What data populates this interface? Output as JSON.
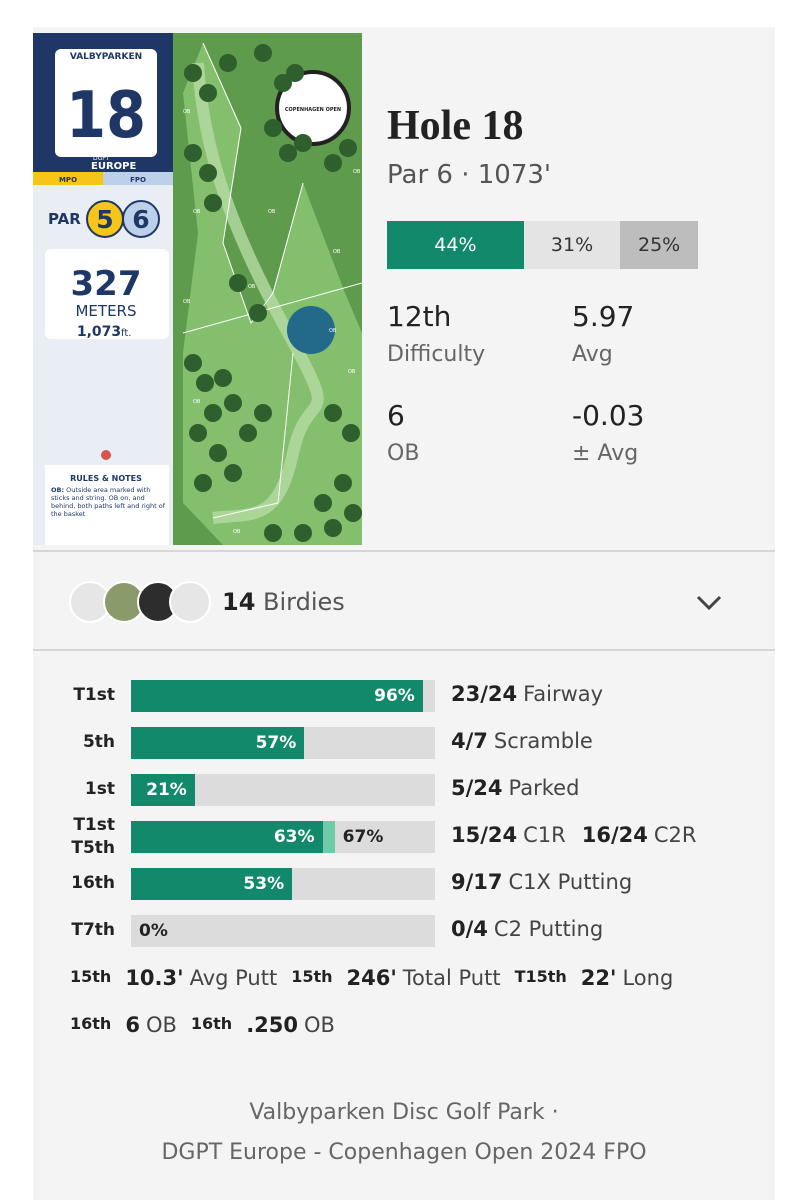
{
  "hole_card": {
    "park": "VALBYPARKEN",
    "number": "18",
    "tour": "DGPT",
    "region": "EUROPE",
    "divisions": [
      "MPO",
      "FPO"
    ],
    "par_label": "PAR",
    "pars": [
      "5",
      "6"
    ],
    "meters": "327",
    "meters_label": "METERS",
    "feet": "1,073",
    "feet_unit": "ft.",
    "rules_title": "RULES & NOTES",
    "rules_term": "OB:",
    "rules_text": "Outside area marked with sticks and string. OB on, and behind, both paths left and right of the basket"
  },
  "map": {
    "logo_text": "COPENHAGEN OPEN",
    "ob_label": "OB"
  },
  "summary": {
    "title": "Hole 18",
    "subtitle": "Par 6 · 1073'",
    "distribution": {
      "values": [
        44,
        31,
        25
      ],
      "value_labels": [
        "44%",
        "31%",
        "25%"
      ]
    },
    "stats": [
      {
        "value": "12th",
        "label": "Difficulty"
      },
      {
        "value": "5.97",
        "label": "Avg"
      },
      {
        "value": "6",
        "label": "OB"
      },
      {
        "value": "-0.03",
        "label": "± Avg"
      }
    ]
  },
  "birdies": {
    "count": "14",
    "label": "Birdies"
  },
  "stat_bars": [
    {
      "ranks": [
        "T1st"
      ],
      "values": [
        96
      ],
      "value_labels": [
        "96%"
      ],
      "counts": [
        "23/24"
      ],
      "names": [
        "Fairway"
      ]
    },
    {
      "ranks": [
        "5th"
      ],
      "values": [
        57
      ],
      "value_labels": [
        "57%"
      ],
      "counts": [
        "4/7"
      ],
      "names": [
        "Scramble"
      ]
    },
    {
      "ranks": [
        "1st"
      ],
      "values": [
        21
      ],
      "value_labels": [
        "21%"
      ],
      "counts": [
        "5/24"
      ],
      "names": [
        "Parked"
      ]
    },
    {
      "ranks": [
        "T1st",
        "T5th"
      ],
      "values": [
        63,
        67
      ],
      "value_labels": [
        "63%",
        "67%"
      ],
      "counts": [
        "15/24",
        "16/24"
      ],
      "names": [
        "C1R",
        "C2R"
      ]
    },
    {
      "ranks": [
        "16th"
      ],
      "values": [
        53
      ],
      "value_labels": [
        "53%"
      ],
      "counts": [
        "9/17"
      ],
      "names": [
        "C1X Putting"
      ]
    },
    {
      "ranks": [
        "T7th"
      ],
      "values": [
        0
      ],
      "value_labels": [
        "0%"
      ],
      "counts": [
        "0/4"
      ],
      "names": [
        "C2 Putting"
      ]
    }
  ],
  "extra_stats": [
    [
      {
        "rank": "15th",
        "value": "10.3'",
        "label": "Avg Putt"
      },
      {
        "rank": "15th",
        "value": "246'",
        "label": "Total Putt"
      },
      {
        "rank": "T15th",
        "value": "22'",
        "label": "Long"
      }
    ],
    [
      {
        "rank": "16th",
        "value": "6",
        "label": "OB"
      },
      {
        "rank": "16th",
        "value": ".250",
        "label": "OB"
      }
    ]
  ],
  "footer": {
    "line1": "Valbyparken Disc Golf Park ·",
    "line2": "DGPT Europe - Copenhagen Open 2024 FPO"
  }
}
